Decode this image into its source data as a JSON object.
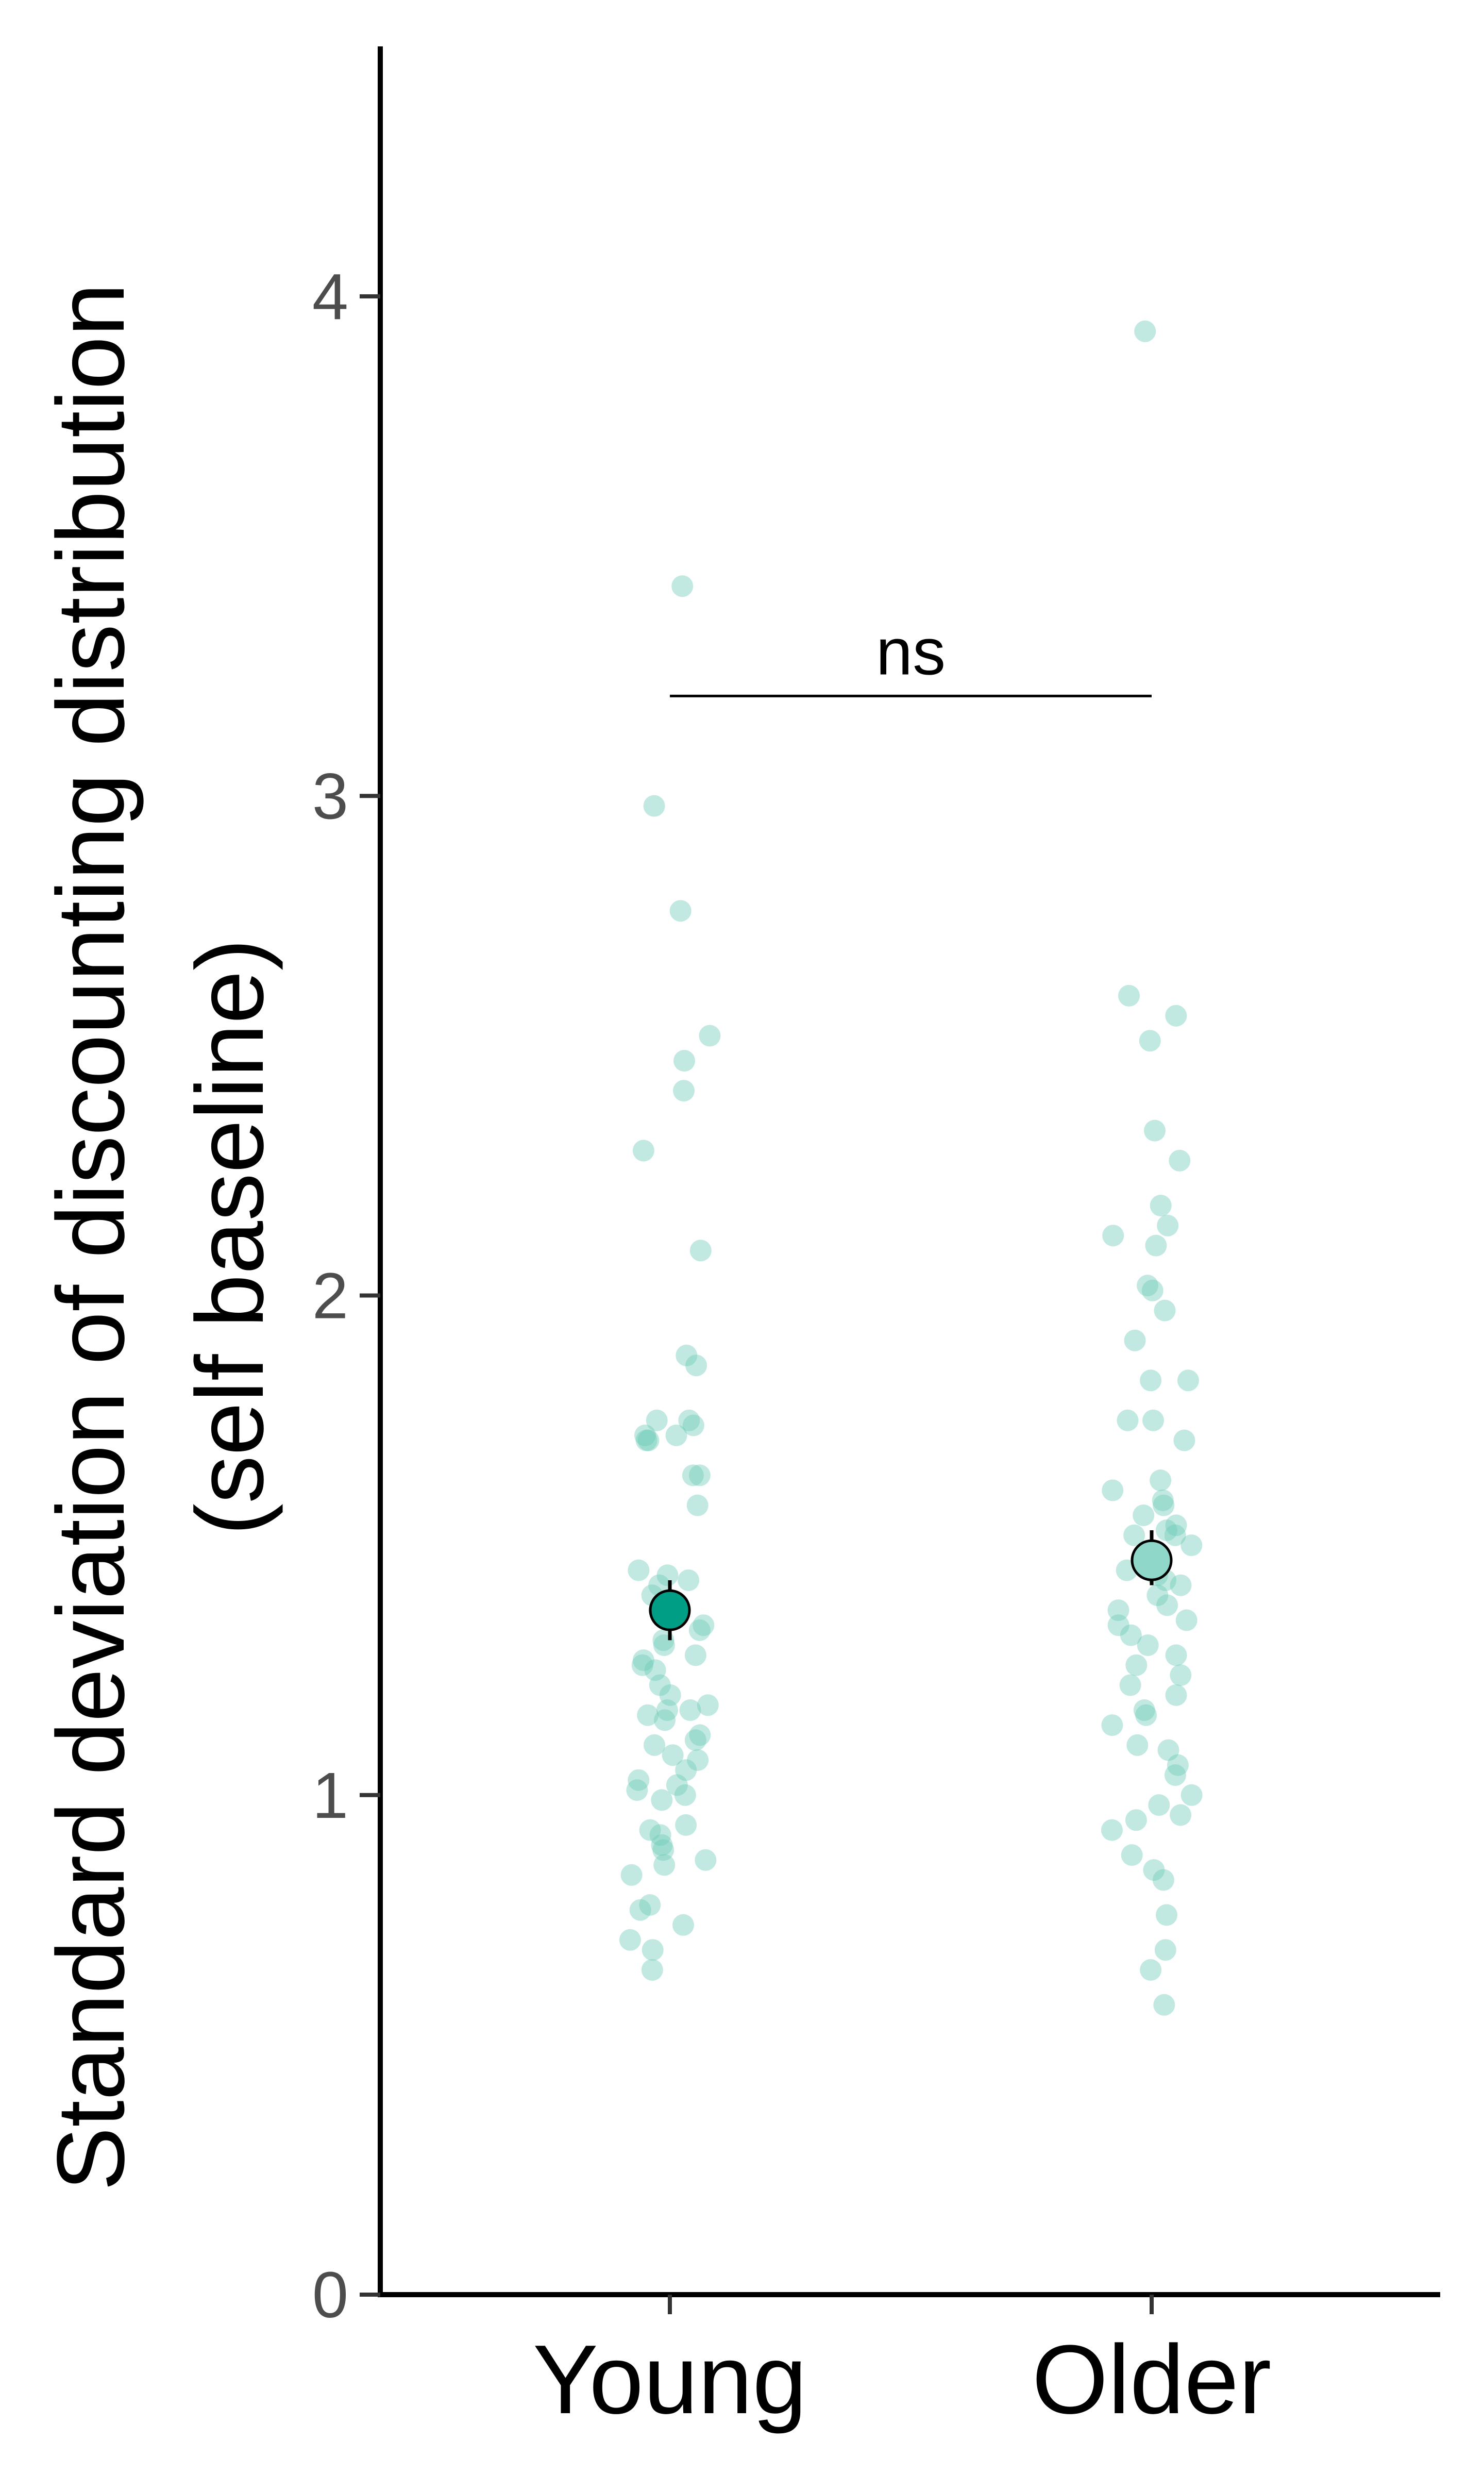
{
  "chart_data": {
    "type": "scatter",
    "title": "",
    "xlabel": "",
    "ylabel_lines": [
      "Standard deviation of discounting distribution",
      "(self baseline)"
    ],
    "categories": [
      "Young",
      "Older"
    ],
    "ylim": [
      0,
      4.5
    ],
    "yticks": [
      0,
      1,
      2,
      3,
      4
    ],
    "grid": false,
    "legend": "none",
    "colors": {
      "Young": "#009E85",
      "Older": "#8FD7C8",
      "points": "#6BCBB8"
    },
    "series": [
      {
        "category": "Young",
        "mean": 1.37,
        "err_low": 1.31,
        "err_high": 1.43,
        "points": [
          3.42,
          2.98,
          2.77,
          2.52,
          2.47,
          2.41,
          2.29,
          2.09,
          1.88,
          1.86,
          1.75,
          1.75,
          1.74,
          1.72,
          1.72,
          1.71,
          1.71,
          1.64,
          1.64,
          1.58,
          1.45,
          1.44,
          1.43,
          1.42,
          1.4,
          1.37,
          1.34,
          1.33,
          1.31,
          1.3,
          1.28,
          1.27,
          1.26,
          1.25,
          1.22,
          1.2,
          1.18,
          1.17,
          1.17,
          1.16,
          1.15,
          1.12,
          1.11,
          1.1,
          1.08,
          1.07,
          1.05,
          1.03,
          1.02,
          1.01,
          1.0,
          0.99,
          0.94,
          0.93,
          0.92,
          0.9,
          0.89,
          0.87,
          0.86,
          0.84,
          0.78,
          0.77,
          0.74,
          0.71,
          0.69,
          0.65
        ]
      },
      {
        "category": "Older",
        "mean": 1.47,
        "err_low": 1.42,
        "err_high": 1.53,
        "points": [
          3.93,
          2.6,
          2.56,
          2.51,
          2.33,
          2.27,
          2.18,
          2.14,
          2.12,
          2.1,
          2.02,
          2.01,
          1.97,
          1.91,
          1.83,
          1.83,
          1.75,
          1.75,
          1.71,
          1.63,
          1.61,
          1.59,
          1.58,
          1.56,
          1.54,
          1.53,
          1.52,
          1.52,
          1.5,
          1.48,
          1.45,
          1.44,
          1.43,
          1.42,
          1.4,
          1.38,
          1.37,
          1.35,
          1.34,
          1.32,
          1.3,
          1.28,
          1.26,
          1.24,
          1.22,
          1.2,
          1.17,
          1.16,
          1.14,
          1.1,
          1.09,
          1.06,
          1.04,
          1.0,
          0.98,
          0.96,
          0.95,
          0.93,
          0.88,
          0.85,
          0.83,
          0.76,
          0.69,
          0.65,
          0.58
        ]
      }
    ],
    "annotations": [
      {
        "text": "ns",
        "from": "Young",
        "to": "Older",
        "y": 3.2
      }
    ]
  }
}
